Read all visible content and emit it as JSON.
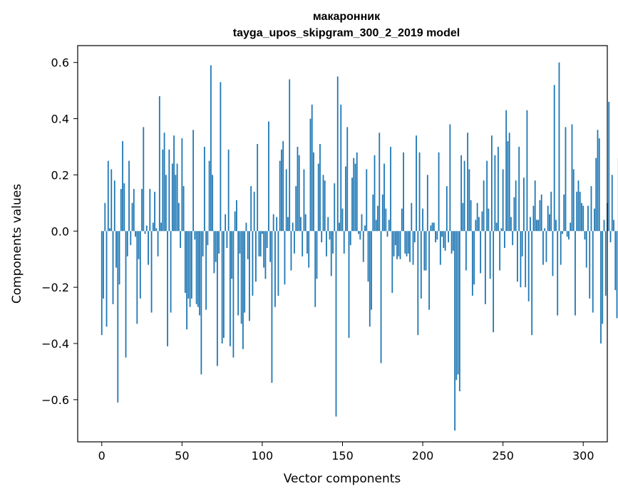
{
  "chart_data": {
    "type": "bar",
    "title": "макаронник",
    "subtitle": "tayga_upos_skipgram_300_2_2019 model",
    "xlabel": "Vector components",
    "ylabel": "Components values",
    "xlim": [
      -15,
      315
    ],
    "ylim": [
      -0.75,
      0.66
    ],
    "xticks": [
      0,
      50,
      100,
      150,
      200,
      250,
      300
    ],
    "yticks": [
      -0.6,
      -0.4,
      -0.2,
      0.0,
      0.2,
      0.4,
      0.6
    ],
    "ytick_labels": [
      "−0.6",
      "−0.4",
      "−0.2",
      "0.0",
      "0.2",
      "0.4",
      "0.6"
    ],
    "bar_color": "#1f77b4",
    "grid": false,
    "values": [
      -0.37,
      -0.24,
      0.1,
      -0.34,
      0.25,
      0.01,
      0.22,
      -0.26,
      0.18,
      -0.13,
      -0.61,
      -0.19,
      0.15,
      0.32,
      0.17,
      -0.45,
      -0.09,
      0.25,
      -0.05,
      0.1,
      0.15,
      -0.02,
      -0.33,
      -0.1,
      -0.24,
      0.15,
      0.37,
      -0.01,
      0.02,
      -0.12,
      0.15,
      -0.29,
      0.03,
      0.14,
      0.01,
      -0.09,
      0.48,
      0.03,
      0.29,
      0.35,
      0.2,
      -0.41,
      0.29,
      -0.29,
      0.24,
      0.34,
      0.2,
      0.24,
      0.1,
      -0.06,
      0.33,
      0.16,
      -0.22,
      -0.35,
      -0.24,
      -0.27,
      -0.24,
      0.36,
      -0.03,
      -0.26,
      -0.27,
      -0.3,
      -0.51,
      -0.09,
      0.3,
      -0.28,
      -0.05,
      0.25,
      0.59,
      0.2,
      -0.15,
      -0.11,
      -0.48,
      -0.08,
      0.53,
      -0.4,
      -0.38,
      0.06,
      -0.06,
      0.29,
      -0.41,
      -0.17,
      -0.45,
      0.07,
      0.11,
      -0.3,
      -0.08,
      -0.33,
      -0.42,
      -0.29,
      0.03,
      -0.1,
      -0.32,
      0.16,
      -0.23,
      0.14,
      -0.18,
      0.31,
      -0.09,
      -0.09,
      -0.01,
      -0.13,
      -0.17,
      -0.06,
      0.39,
      -0.11,
      -0.54,
      0.06,
      -0.27,
      0.05,
      -0.23,
      0.25,
      0.29,
      0.32,
      -0.19,
      0.22,
      0.05,
      0.54,
      -0.14,
      0.03,
      -0.08,
      0.16,
      0.3,
      0.27,
      0.05,
      -0.09,
      0.22,
      0.06,
      -0.08,
      -0.13,
      0.4,
      0.45,
      0.28,
      -0.27,
      -0.17,
      0.24,
      0.31,
      -0.04,
      0.2,
      0.18,
      -0.09,
      0.05,
      -0.03,
      -0.16,
      -0.08,
      0.17,
      -0.66,
      0.55,
      0.03,
      0.45,
      0.08,
      -0.08,
      0.23,
      0.37,
      -0.38,
      -0.05,
      0.19,
      0.26,
      0.24,
      0.28,
      -0.01,
      -0.03,
      0.06,
      -0.11,
      0.02,
      0.22,
      -0.18,
      -0.34,
      -0.28,
      0.13,
      0.27,
      0.04,
      0.09,
      0.35,
      -0.47,
      0.13,
      0.24,
      0.08,
      -0.02,
      0.04,
      0.3,
      -0.22,
      -0.09,
      -0.05,
      -0.1,
      -0.09,
      -0.1,
      0.08,
      0.28,
      -0.08,
      -0.09,
      -0.08,
      -0.11,
      0.1,
      -0.12,
      -0.04,
      0.34,
      -0.37,
      0.28,
      -0.24,
      0.08,
      -0.14,
      -0.14,
      0.2,
      -0.28,
      0.02,
      0.03,
      0.03,
      -0.04,
      -0.03,
      0.28,
      -0.12,
      -0.02,
      -0.06,
      -0.07,
      0.16,
      -0.04,
      0.38,
      -0.08,
      -0.07,
      -0.71,
      -0.53,
      -0.51,
      -0.57,
      0.27,
      0.1,
      0.25,
      -0.14,
      0.35,
      0.22,
      0.11,
      -0.23,
      -0.19,
      0.04,
      0.1,
      0.05,
      -0.15,
      0.07,
      0.18,
      -0.26,
      0.25,
      0.08,
      -0.17,
      0.34,
      -0.36,
      0.27,
      0.03,
      0.3,
      -0.14,
      0.01,
      0.22,
      -0.06,
      0.43,
      0.32,
      0.35,
      0.05,
      -0.05,
      0.12,
      0.18,
      -0.18,
      0.3,
      -0.2,
      -0.09,
      0.19,
      -0.2,
      0.43,
      -0.25,
      0.05,
      -0.37,
      0.09,
      0.18,
      0.04,
      0.04,
      0.11,
      0.13,
      -0.12,
      0.01,
      -0.11,
      0.09,
      0.06,
      0.14,
      -0.16,
      0.52,
      0.04,
      -0.3,
      0.6,
      -0.12,
      -0.01,
      0.13,
      0.37,
      -0.02,
      -0.03,
      0.03,
      0.38,
      0.22,
      -0.3,
      0.14,
      0.18,
      0.14,
      0.1,
      0.09,
      -0.03,
      -0.13,
      0.09,
      -0.24,
      0.16,
      -0.29,
      0.08,
      0.26,
      0.36,
      0.33,
      -0.4,
      -0.33,
      0.04,
      -0.23,
      0.1,
      0.46,
      -0.04,
      0.2,
      0.04,
      -0.21,
      -0.31,
      0.26
    ]
  }
}
